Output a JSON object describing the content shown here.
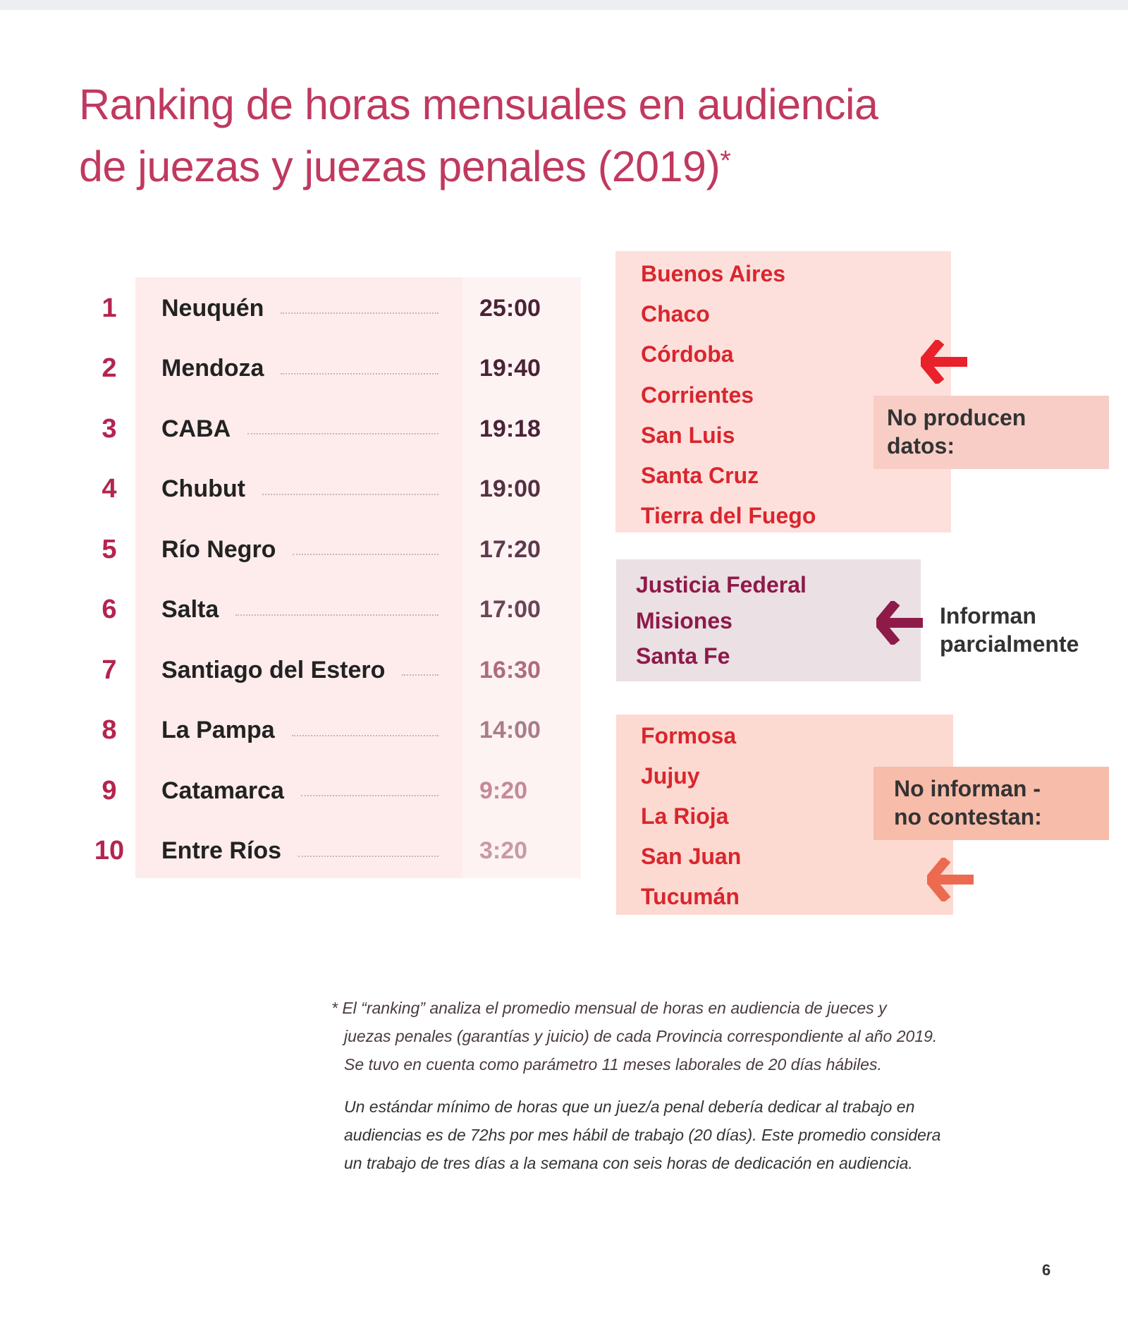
{
  "title": {
    "line1": "Ranking de horas mensuales en audiencia",
    "line2": "de juezas y juezas penales (2019)",
    "asterisk": "*"
  },
  "ranking": [
    {
      "rank": "1",
      "name": "Neuquén",
      "hours": "25:00"
    },
    {
      "rank": "2",
      "name": "Mendoza",
      "hours": "19:40"
    },
    {
      "rank": "3",
      "name": "CABA",
      "hours": "19:18"
    },
    {
      "rank": "4",
      "name": "Chubut",
      "hours": "19:00"
    },
    {
      "rank": "5",
      "name": "Río Negro",
      "hours": "17:20"
    },
    {
      "rank": "6",
      "name": "Salta",
      "hours": "17:00"
    },
    {
      "rank": "7",
      "name": "Santiago del Estero",
      "hours": "16:30"
    },
    {
      "rank": "8",
      "name": "La Pampa",
      "hours": "14:00"
    },
    {
      "rank": "9",
      "name": "Catamarca",
      "hours": "9:20"
    },
    {
      "rank": "10",
      "name": "Entre Ríos",
      "hours": "3:20"
    }
  ],
  "groups": {
    "no_producen": {
      "label1": "No producen",
      "label2": "datos:",
      "items": [
        "Buenos Aires",
        "Chaco",
        "Córdoba",
        "Corrientes",
        "San Luis",
        "Santa Cruz",
        "Tierra del Fuego"
      ],
      "color": "#d9262e",
      "arrow_icon": "arrow-left-icon"
    },
    "parcial": {
      "label1": "Informan",
      "label2": "parcialmente",
      "items": [
        "Justicia Federal",
        "Misiones",
        "Santa Fe"
      ],
      "color": "#8e1a4a",
      "arrow_icon": "arrow-left-icon"
    },
    "no_informan": {
      "label1": "No informan -",
      "label2": "no contestan:",
      "items": [
        "Formosa",
        "Jujuy",
        "La Rioja",
        "San Juan",
        "Tucumán"
      ],
      "color": "#d9262e",
      "arrow_icon": "arrow-left-icon"
    }
  },
  "footnote": {
    "p1": [
      "* El “ranking” analiza el promedio mensual de horas en audiencia de jueces y",
      "juezas penales (garantías y juicio) de cada Provincia correspondiente al año 2019.",
      "Se tuvo en cuenta como parámetro 11 meses laborales de 20 días hábiles."
    ],
    "p2": [
      "Un estándar mínimo de horas que un juez/a penal debería dedicar al trabajo en",
      "audiencias es de 72hs por mes hábil de trabajo (20 días). Este promedio considera",
      "un trabajo de tres días a la semana con seis horas de dedicación en audiencia."
    ]
  },
  "page_number": "6",
  "colors": {
    "title": "#c0395f",
    "rank": "#b5244f",
    "red_arrow": "#e8212a",
    "purple_arrow": "#8e1a4a",
    "orange_arrow": "#ec6a50"
  }
}
